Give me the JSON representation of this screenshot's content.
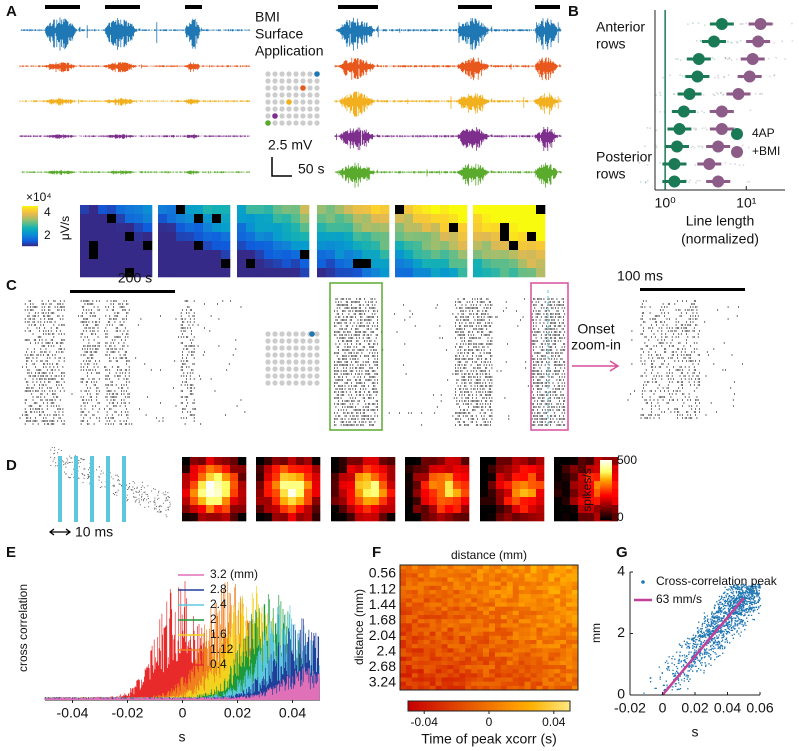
{
  "letters": [
    "A",
    "B",
    "C",
    "D",
    "E",
    "F",
    "G"
  ],
  "panel_a": {
    "annotation": [
      "BMI",
      "Surface",
      "Application"
    ],
    "scale_v": "2.5 mV",
    "scale_t": "50 s",
    "colorbar": {
      "exponent": "×10⁴",
      "unit": "μV/s",
      "ticks": [
        4,
        2
      ]
    }
  },
  "panel_b": {
    "type": "dot",
    "rows_top": [
      "Anterior",
      "rows"
    ],
    "rows_bottom": [
      "Posterior",
      "rows"
    ],
    "log_x": true,
    "series": [
      {
        "name": "4AP",
        "color": "#1b7a56",
        "values": [
          5,
          4,
          2.6,
          2.5,
          2,
          1.7,
          1.5,
          1.4,
          1.3,
          1.3
        ]
      },
      {
        "name": "+BMI",
        "color": "#8c5b88",
        "values": [
          15,
          14,
          12,
          11,
          8,
          5,
          5,
          4.5,
          3.5,
          4.5
        ]
      }
    ],
    "xlim": [
      0.75,
      30
    ],
    "xticks": [
      {
        "value": 1,
        "label": "10⁰"
      },
      {
        "value": 10,
        "label": "10¹"
      }
    ],
    "xlabel": [
      "Line length",
      "(normalized)"
    ]
  },
  "panel_c": {
    "scale": "200 s",
    "zoom_label": [
      "Onset",
      "zoom-in"
    ],
    "zoom_scale": "100 ms"
  },
  "panel_d": {
    "scale": "10 ms",
    "colorbar": {
      "unit": "spikes/s",
      "ticks": [
        500,
        0
      ]
    }
  },
  "panel_e": {
    "ylabel": "cross correlation",
    "xlabel": "s",
    "xlim": [
      -0.05,
      0.05
    ],
    "xticks": [
      -0.04,
      -0.02,
      0,
      0.02,
      0.04
    ],
    "series": [
      {
        "name": "3.2 (mm)",
        "color": "#e070b8"
      },
      {
        "name": "2.8",
        "color": "#1f3f9a"
      },
      {
        "name": "2.4",
        "color": "#5bc8e0"
      },
      {
        "name": "2",
        "color": "#1c9a3a"
      },
      {
        "name": "1.6",
        "color": "#f2d21e"
      },
      {
        "name": "1.12",
        "color": "#f07f1e"
      },
      {
        "name": "0.4",
        "color": "#e82a2a"
      }
    ]
  },
  "panel_f": {
    "title": "distance (mm)",
    "ylabel": "distance (mm)",
    "ycategories": [
      0.56,
      1.12,
      1.44,
      1.68,
      2.04,
      2.4,
      2.68,
      3.24
    ],
    "colorbar": {
      "lim": [
        -0.05,
        0.05
      ],
      "ticks": [
        -0.04,
        0,
        0.04
      ],
      "label": "Time of peak xcorr (s)"
    }
  },
  "panel_g": {
    "type": "scatter",
    "point_label": "Cross-correlation peak",
    "point_color": "#1f77b4",
    "fit": {
      "slope": 63,
      "label": "63 mm/s",
      "xrange": [
        0,
        0.05
      ],
      "color": "#c0409a"
    },
    "xlim": [
      -0.02,
      0.06
    ],
    "xticks": [
      -0.02,
      0,
      0.02,
      0.04,
      0.06
    ],
    "ylim": [
      0,
      4
    ],
    "yticks": [
      0,
      2,
      4
    ],
    "xlabel": "s",
    "ylabel": "mm"
  }
}
